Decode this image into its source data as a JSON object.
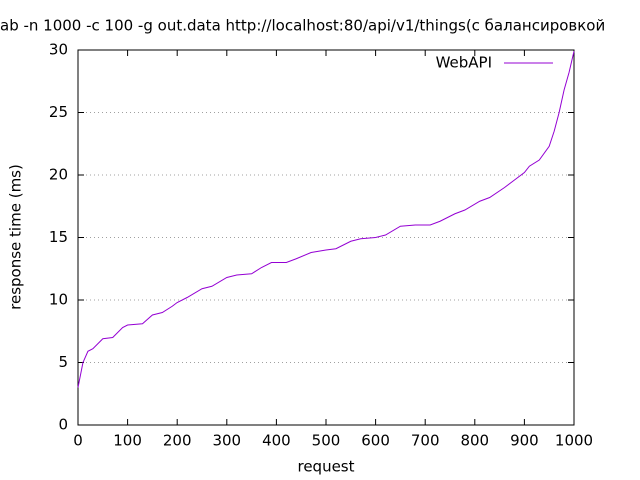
{
  "chart_data": {
    "type": "line",
    "title": "ab -n 1000 -c 100 -g out.data http://localhost:80/api/v1/things(с балансировкой",
    "x_label": "request",
    "y_label": "response time (ms)",
    "x": [
      0,
      10,
      20,
      30,
      50,
      70,
      90,
      100,
      130,
      150,
      170,
      190,
      200,
      220,
      250,
      270,
      300,
      320,
      350,
      370,
      390,
      420,
      440,
      470,
      500,
      520,
      550,
      570,
      600,
      620,
      650,
      680,
      710,
      730,
      760,
      780,
      810,
      830,
      860,
      880,
      900,
      910,
      930,
      950,
      960,
      970,
      980,
      990,
      1000
    ],
    "series": [
      {
        "name": "WebAPI",
        "color": "#9400d3",
        "values": [
          3,
          5,
          5.9,
          6.1,
          6.9,
          7.0,
          7.8,
          8,
          8.1,
          8.8,
          9,
          9.5,
          9.8,
          10.2,
          10.9,
          11.1,
          11.8,
          12,
          12.1,
          12.6,
          13,
          13,
          13.3,
          13.8,
          14,
          14.1,
          14.7,
          14.9,
          15,
          15.2,
          15.9,
          16,
          16,
          16.3,
          16.9,
          17.2,
          17.9,
          18.2,
          19,
          19.6,
          20.2,
          20.7,
          21.2,
          22.3,
          23.5,
          25,
          26.8,
          28.2,
          29.9
        ]
      }
    ],
    "xlim": [
      0,
      1000
    ],
    "xticks": [
      0,
      100,
      200,
      300,
      400,
      500,
      600,
      700,
      800,
      900,
      1000
    ],
    "ylim": [
      0,
      30
    ],
    "yticks": [
      0,
      5,
      10,
      15,
      20,
      25,
      30
    ],
    "grid": true,
    "legend": "top-right"
  }
}
